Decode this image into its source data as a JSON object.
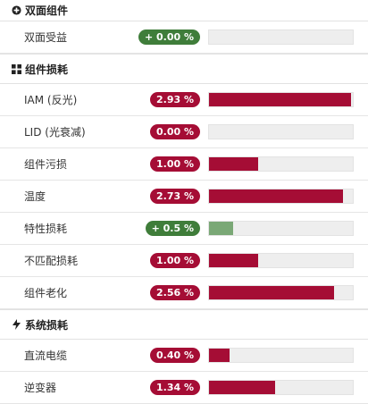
{
  "sections": {
    "bifacial": {
      "title": "双面组件",
      "icon": "plus-circle-icon",
      "rows": [
        {
          "label": "双面受益",
          "value": "+ 0.00 %",
          "fill": 0.0,
          "tone": "green"
        }
      ]
    },
    "module": {
      "title": "组件损耗",
      "icon": "grid-icon",
      "rows": [
        {
          "label": "IAM (反光)",
          "value": "2.93 %",
          "fill": 0.99,
          "tone": "red"
        },
        {
          "label": "LID (光衰减)",
          "value": "0.00 %",
          "fill": 0.0,
          "tone": "red"
        },
        {
          "label": "组件污损",
          "value": "1.00 %",
          "fill": 0.34,
          "tone": "red"
        },
        {
          "label": "温度",
          "value": "2.73 %",
          "fill": 0.93,
          "tone": "red"
        },
        {
          "label": "特性损耗",
          "value": "+ 0.5 %",
          "fill": 0.17,
          "tone": "green"
        },
        {
          "label": "不匹配损耗",
          "value": "1.00 %",
          "fill": 0.34,
          "tone": "red"
        },
        {
          "label": "组件老化",
          "value": "2.56 %",
          "fill": 0.87,
          "tone": "red"
        }
      ]
    },
    "system": {
      "title": "系统损耗",
      "icon": "lightning-icon",
      "rows": [
        {
          "label": "直流电缆",
          "value": "0.40 %",
          "fill": 0.14,
          "tone": "red"
        },
        {
          "label": "逆变器",
          "value": "1.34 %",
          "fill": 0.46,
          "tone": "red"
        }
      ]
    }
  },
  "colors": {
    "loss": "#a50d35",
    "gain_badge": "#3f7d3a",
    "gain_bar": "#7aa876"
  }
}
